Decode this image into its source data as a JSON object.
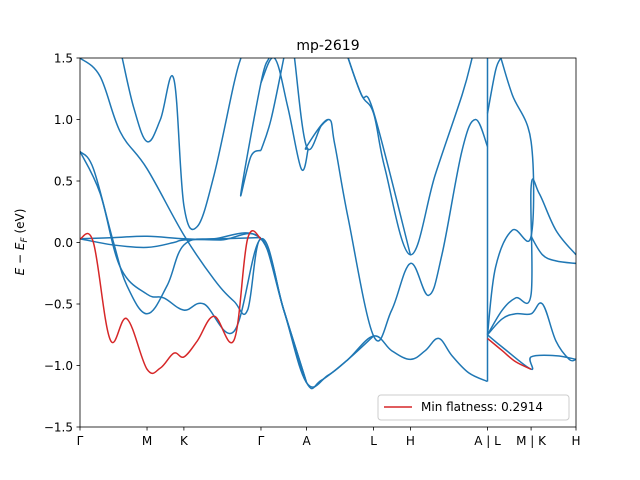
{
  "chart_data": {
    "type": "line",
    "title": "mp-2619",
    "ylabel": "E − E_F (eV)",
    "ylim": [
      -1.5,
      1.5
    ],
    "yticks": [
      -1.5,
      -1.0,
      -0.5,
      0.0,
      0.5,
      1.0,
      1.5
    ],
    "ytick_labels": [
      "−1.5",
      "−1.0",
      "−0.5",
      "0.0",
      "0.5",
      "1.0",
      "1.5"
    ],
    "xlim": [
      0,
      7.4
    ],
    "kpoints": [
      {
        "label": "Γ",
        "x": 0.0
      },
      {
        "label": "M",
        "x": 1.0
      },
      {
        "label": "K",
        "x": 1.55
      },
      {
        "label": "Γ",
        "x": 2.7
      },
      {
        "label": "A",
        "x": 3.38
      },
      {
        "label": "L",
        "x": 4.38
      },
      {
        "label": "H",
        "x": 4.93
      },
      {
        "label": "A | L",
        "x": 6.08
      },
      {
        "label": "M | K",
        "x": 6.73
      },
      {
        "label": "H",
        "x": 7.4
      }
    ],
    "legend": {
      "position": "lower-right",
      "entries": [
        "Min flatness: 0.2914"
      ]
    },
    "colors": {
      "bands": "#1f77b4",
      "flat": "#d62728"
    },
    "series": [
      {
        "kind": "band",
        "points": [
          [
            0,
            0.03
          ],
          [
            0.5,
            0.04
          ],
          [
            1,
            0.05
          ],
          [
            1.55,
            0.03
          ],
          [
            2.1,
            0.02
          ],
          [
            2.7,
            0.03
          ],
          [
            3.04,
            -0.55
          ],
          [
            3.38,
            -1.14
          ],
          [
            3.7,
            -1.08
          ],
          [
            4.0,
            -0.95
          ],
          [
            4.38,
            -0.76
          ],
          [
            4.65,
            -0.88
          ],
          [
            4.93,
            -0.95
          ],
          [
            5.15,
            -0.88
          ],
          [
            5.35,
            -0.78
          ],
          [
            5.55,
            -0.92
          ],
          [
            5.8,
            -1.06
          ],
          [
            6.08,
            -1.13
          ]
        ]
      },
      {
        "kind": "band",
        "points": [
          [
            0,
            0.74
          ],
          [
            0.3,
            0.4
          ],
          [
            0.6,
            -0.2
          ],
          [
            1,
            -0.42
          ],
          [
            1.25,
            -0.45
          ],
          [
            1.55,
            -0.55
          ],
          [
            1.85,
            -0.5
          ],
          [
            2.3,
            -0.72
          ],
          [
            2.7,
            0.03
          ],
          [
            3.04,
            -0.55
          ],
          [
            3.38,
            -1.14
          ],
          [
            3.6,
            -1.12
          ],
          [
            4.0,
            -0.95
          ],
          [
            4.38,
            -0.76
          ]
        ]
      },
      {
        "kind": "band",
        "points": [
          [
            0,
            0.74
          ],
          [
            0.2,
            0.6
          ],
          [
            0.5,
            0.0
          ],
          [
            0.7,
            -0.35
          ],
          [
            1,
            -0.58
          ],
          [
            1.3,
            -0.35
          ],
          [
            1.55,
            -0.02
          ],
          [
            2.0,
            0.03
          ],
          [
            2.7,
            0.03
          ],
          [
            3.04,
            -0.55
          ],
          [
            3.38,
            -1.14
          ]
        ]
      },
      {
        "kind": "band",
        "points": [
          [
            0,
            0.03
          ],
          [
            0.5,
            -0.02
          ],
          [
            1,
            -0.04
          ],
          [
            1.4,
            0.0
          ],
          [
            1.55,
            0.02
          ],
          [
            2.1,
            0.03
          ],
          [
            2.7,
            0.04
          ]
        ]
      },
      {
        "kind": "band",
        "points": [
          [
            0,
            1.5
          ],
          [
            0.3,
            1.35
          ],
          [
            0.6,
            0.9
          ],
          [
            1,
            0.6
          ],
          [
            1.55,
            0.06
          ],
          [
            2.0,
            -0.3
          ],
          [
            2.3,
            -0.48
          ],
          [
            2.5,
            -0.55
          ],
          [
            2.7,
            0.03
          ],
          [
            3.04,
            -0.55
          ],
          [
            3.38,
            -1.14
          ]
        ]
      },
      {
        "kind": "band",
        "points": [
          [
            0.63,
            1.5
          ],
          [
            0.8,
            1.1
          ],
          [
            1,
            0.82
          ],
          [
            1.2,
            1.0
          ],
          [
            1.4,
            1.33
          ],
          [
            1.55,
            0.3
          ],
          [
            1.75,
            0.13
          ],
          [
            2.0,
            0.55
          ],
          [
            2.3,
            1.3
          ],
          [
            2.4,
            1.5
          ]
        ]
      },
      {
        "kind": "band",
        "points": [
          [
            2.7,
            0.75
          ],
          [
            2.85,
            1.0
          ],
          [
            3.04,
            1.5
          ]
        ]
      },
      {
        "kind": "band",
        "points": [
          [
            2.7,
            0.75
          ],
          [
            2.55,
            0.7
          ],
          [
            2.4,
            0.4
          ],
          [
            2.7,
            1.3
          ],
          [
            2.82,
            1.5
          ]
        ]
      },
      {
        "kind": "band",
        "points": [
          [
            2.7,
            1.3
          ],
          [
            2.9,
            1.5
          ],
          [
            3.1,
            1.1
          ],
          [
            3.3,
            0.6
          ],
          [
            3.4,
            0.75
          ],
          [
            3.38,
            0.78
          ],
          [
            3.7,
            1.0
          ],
          [
            3.8,
            0.8
          ],
          [
            4.0,
            0.2
          ],
          [
            4.38,
            -0.76
          ],
          [
            4.65,
            -0.55
          ],
          [
            4.93,
            -0.17
          ],
          [
            5.2,
            -0.43
          ],
          [
            5.4,
            -0.1
          ],
          [
            5.7,
            0.75
          ],
          [
            5.9,
            1.0
          ],
          [
            6.08,
            0.78
          ]
        ]
      },
      {
        "kind": "band",
        "points": [
          [
            3.2,
            1.5
          ],
          [
            3.38,
            0.78
          ],
          [
            3.6,
            0.95
          ],
          [
            3.7,
            1.0
          ]
        ]
      },
      {
        "kind": "band",
        "points": [
          [
            4.0,
            1.5
          ],
          [
            4.2,
            1.2
          ],
          [
            4.38,
            1.05
          ],
          [
            4.55,
            0.6
          ],
          [
            4.93,
            -0.1
          ],
          [
            5.3,
            0.55
          ],
          [
            5.7,
            1.2
          ],
          [
            5.85,
            1.5
          ]
        ]
      },
      {
        "kind": "band",
        "points": [
          [
            4.0,
            1.5
          ],
          [
            4.2,
            1.2
          ],
          [
            4.38,
            1.06
          ],
          [
            4.93,
            -0.1
          ]
        ]
      },
      {
        "kind": "band",
        "points": [
          [
            6.08,
            1.5
          ],
          [
            6.08,
            -1.13
          ]
        ]
      },
      {
        "kind": "band",
        "points": [
          [
            6.08,
            1.05
          ],
          [
            6.2,
            1.4
          ],
          [
            6.28,
            1.5
          ]
        ]
      },
      {
        "kind": "band",
        "points": [
          [
            6.28,
            1.5
          ],
          [
            6.45,
            1.2
          ],
          [
            6.73,
            0.82
          ],
          [
            6.73,
            0.05
          ],
          [
            6.45,
            0.1
          ],
          [
            6.2,
            -0.2
          ],
          [
            6.08,
            -0.75
          ]
        ]
      },
      {
        "kind": "band",
        "points": [
          [
            6.08,
            -0.75
          ],
          [
            6.3,
            -0.55
          ],
          [
            6.5,
            -0.45
          ],
          [
            6.73,
            -0.42
          ],
          [
            6.73,
            0.45
          ],
          [
            6.85,
            0.4
          ],
          [
            7.1,
            0.1
          ],
          [
            7.4,
            -0.1
          ]
        ]
      },
      {
        "kind": "band",
        "points": [
          [
            6.08,
            -0.75
          ],
          [
            6.3,
            -0.62
          ],
          [
            6.5,
            -0.58
          ],
          [
            6.73,
            -0.58
          ],
          [
            6.9,
            -0.5
          ],
          [
            7.1,
            -0.8
          ],
          [
            7.3,
            -0.95
          ],
          [
            7.4,
            -0.95
          ]
        ]
      },
      {
        "kind": "band",
        "points": [
          [
            6.73,
            0.05
          ],
          [
            6.9,
            -0.1
          ],
          [
            7.1,
            -0.15
          ],
          [
            7.4,
            -0.17
          ]
        ]
      },
      {
        "kind": "band",
        "points": [
          [
            6.08,
            -0.75
          ],
          [
            6.3,
            -0.85
          ],
          [
            6.73,
            -1.03
          ],
          [
            6.73,
            -0.93
          ],
          [
            7.1,
            -0.92
          ],
          [
            7.4,
            -0.95
          ]
        ]
      },
      {
        "kind": "flat",
        "points": [
          [
            0,
            0.03
          ],
          [
            0.2,
            0.0
          ],
          [
            0.45,
            -0.79
          ],
          [
            0.7,
            -0.62
          ],
          [
            1.0,
            -1.03
          ],
          [
            1.2,
            -1.02
          ],
          [
            1.4,
            -0.9
          ],
          [
            1.55,
            -0.93
          ],
          [
            1.75,
            -0.8
          ],
          [
            2.0,
            -0.6
          ],
          [
            2.3,
            -0.79
          ],
          [
            2.5,
            0.03
          ],
          [
            2.7,
            0.03
          ]
        ]
      },
      {
        "kind": "flat",
        "points": [
          [
            6.08,
            -0.78
          ],
          [
            6.3,
            -0.88
          ],
          [
            6.5,
            -0.97
          ],
          [
            6.73,
            -1.03
          ]
        ]
      }
    ]
  }
}
